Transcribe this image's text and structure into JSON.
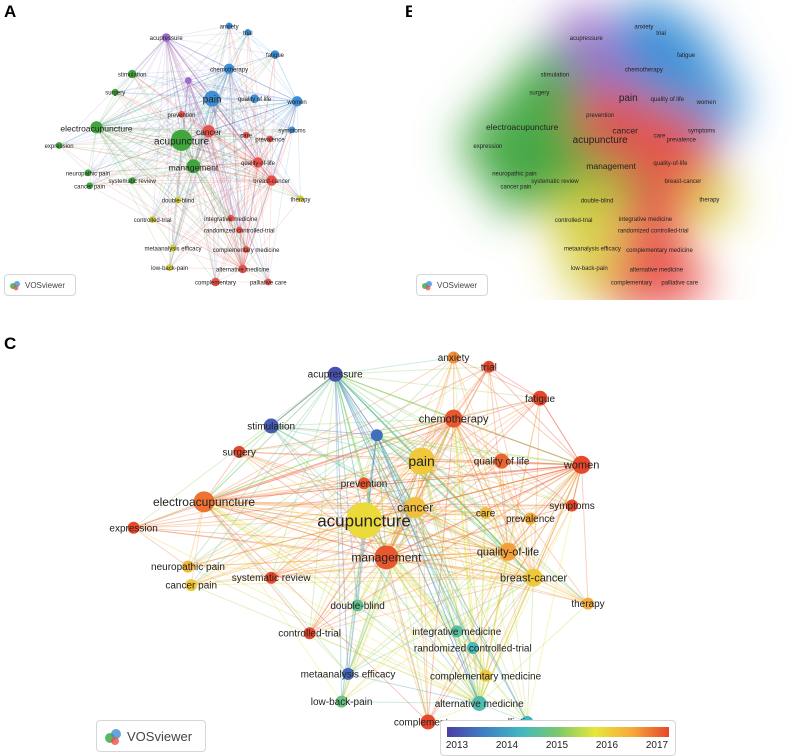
{
  "panels": [
    {
      "letter": "A",
      "mode": "network"
    },
    {
      "letter": "B",
      "mode": "density"
    },
    {
      "letter": "C",
      "mode": "overlay"
    }
  ],
  "vosviewer_label": "VOSviewer",
  "colorbar": {
    "ticks": [
      "2013",
      "2014",
      "2015",
      "2016",
      "2017"
    ],
    "colors": [
      "#4b3fa6",
      "#3f7fc2",
      "#43b7c2",
      "#7bc86b",
      "#e7e73a",
      "#f6a93b",
      "#e8472b"
    ]
  },
  "cluster_colors": {
    "red": "#e8524a",
    "green": "#41a63e",
    "blue": "#3d8fd6",
    "yellow": "#d6cf3b",
    "purple": "#9a6bc9"
  },
  "nodes": [
    {
      "id": "acupuncture",
      "label": "acupuncture",
      "cluster": "green",
      "weight": 10,
      "year": 2015.8
    },
    {
      "id": "management",
      "label": "management",
      "cluster": "green",
      "weight": 6,
      "year": 2016.9
    },
    {
      "id": "electroacupuncture",
      "label": "electroacupuncture",
      "cluster": "green",
      "weight": 5,
      "year": 2016.7
    },
    {
      "id": "stimulation",
      "label": "stimulation",
      "cluster": "green",
      "weight": 3,
      "year": 2013.3
    },
    {
      "id": "surgery",
      "label": "surgery",
      "cluster": "green",
      "weight": 2,
      "year": 2017.0
    },
    {
      "id": "expression",
      "label": "expression",
      "cluster": "green",
      "weight": 2,
      "year": 2017.2
    },
    {
      "id": "neuropathic",
      "label": "neuropathic pain",
      "cluster": "green",
      "weight": 2,
      "year": 2016.2
    },
    {
      "id": "cancerpain",
      "label": "cancer pain",
      "cluster": "green",
      "weight": 2,
      "year": 2016.0
    },
    {
      "id": "systematic",
      "label": "systematic review",
      "cluster": "green",
      "weight": 2,
      "year": 2017.0
    },
    {
      "id": "pain",
      "label": "pain",
      "cluster": "blue",
      "weight": 7,
      "year": 2016.0
    },
    {
      "id": "chemotherapy",
      "label": "chemotherapy",
      "cluster": "blue",
      "weight": 4,
      "year": 2016.9
    },
    {
      "id": "qualityoflife",
      "label": "quality of life",
      "cluster": "blue",
      "weight": 3,
      "year": 2016.8
    },
    {
      "id": "women",
      "label": "women",
      "cluster": "blue",
      "weight": 4,
      "year": 2017.2
    },
    {
      "id": "fatigue",
      "label": "fatigue",
      "cluster": "blue",
      "weight": 3,
      "year": 2017.2
    },
    {
      "id": "trial",
      "label": "trial",
      "cluster": "blue",
      "weight": 2,
      "year": 2017.2
    },
    {
      "id": "anxiety",
      "label": "anxiety",
      "cluster": "blue",
      "weight": 2,
      "year": 2016.5
    },
    {
      "id": "symptoms",
      "label": "symptoms",
      "cluster": "blue",
      "weight": 2,
      "year": 2017.1
    },
    {
      "id": "acupressure",
      "label": "acupressure",
      "cluster": "purple",
      "weight": 3,
      "year": 2013.2
    },
    {
      "id": "hubpurple",
      "label": "",
      "cluster": "purple",
      "weight": 2,
      "year": 2013.5
    },
    {
      "id": "prevention",
      "label": "prevention",
      "cluster": "red",
      "weight": 2,
      "year": 2016.9
    },
    {
      "id": "cancer",
      "label": "cancer",
      "cluster": "red",
      "weight": 5,
      "year": 2016.1
    },
    {
      "id": "care",
      "label": "care",
      "cluster": "red",
      "weight": 2,
      "year": 2016.1
    },
    {
      "id": "prevalence",
      "label": "prevalence",
      "cluster": "red",
      "weight": 2,
      "year": 2016.3
    },
    {
      "id": "qol2",
      "label": "quality-of-life",
      "cluster": "red",
      "weight": 4,
      "year": 2016.4
    },
    {
      "id": "breast",
      "label": "breast-cancer",
      "cluster": "red",
      "weight": 4,
      "year": 2016.0
    },
    {
      "id": "therapy",
      "label": "therapy",
      "cluster": "yellow",
      "weight": 2,
      "year": 2016.3
    },
    {
      "id": "integrative",
      "label": "integrative medicine",
      "cluster": "red",
      "weight": 2,
      "year": 2014.6
    },
    {
      "id": "rct",
      "label": "randomized controlled-trial",
      "cluster": "red",
      "weight": 2,
      "year": 2014.4
    },
    {
      "id": "complementarymed",
      "label": "complementary medicine",
      "cluster": "red",
      "weight": 2,
      "year": 2016.0
    },
    {
      "id": "alternative",
      "label": "alternative medicine",
      "cluster": "red",
      "weight": 3,
      "year": 2014.5
    },
    {
      "id": "complementary",
      "label": "complementary",
      "cluster": "red",
      "weight": 3,
      "year": 2017.1
    },
    {
      "id": "palliative",
      "label": "palliative care",
      "cluster": "red",
      "weight": 2,
      "year": 2014.3
    },
    {
      "id": "doubleblind",
      "label": "double-blind",
      "cluster": "yellow",
      "weight": 2,
      "year": 2014.7
    },
    {
      "id": "controlled",
      "label": "controlled-trial",
      "cluster": "yellow",
      "weight": 2,
      "year": 2017.1
    },
    {
      "id": "metaanalysis",
      "label": "metaanalysis efficacy",
      "cluster": "yellow",
      "weight": 2,
      "year": 2013.4
    },
    {
      "id": "lowback",
      "label": "low-back-pain",
      "cluster": "yellow",
      "weight": 2,
      "year": 2014.8
    }
  ]
}
